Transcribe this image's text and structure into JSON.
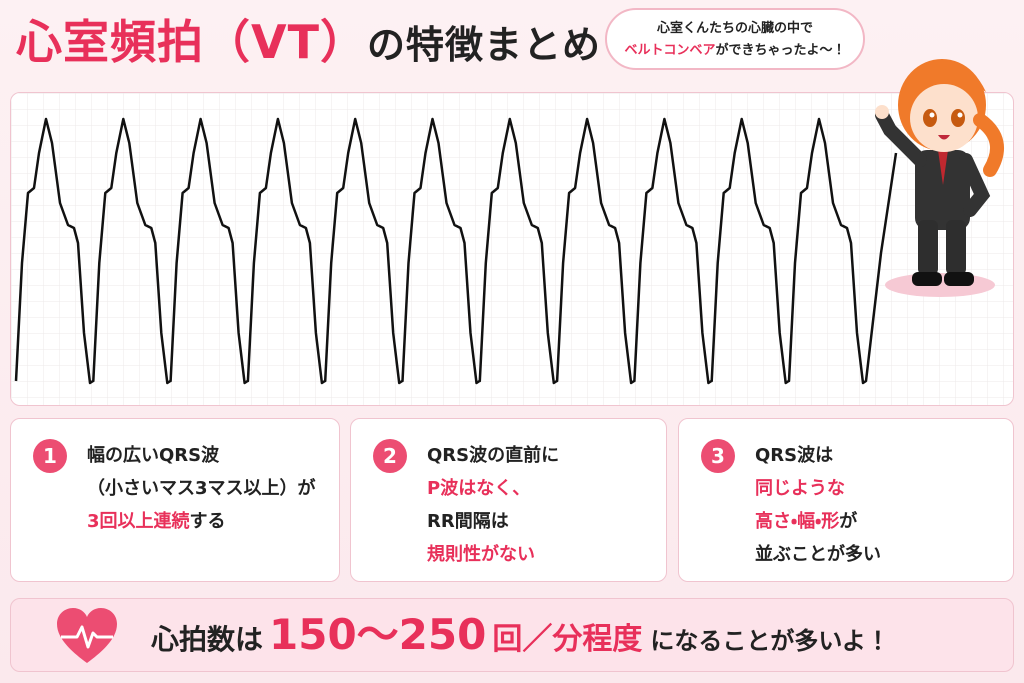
{
  "header": {
    "title": [
      {
        "text": "心室頻拍（VT）",
        "accent": true
      },
      {
        "text": "の特徴まとめ",
        "accent": false
      }
    ]
  },
  "speech_bubble": {
    "lines": [
      [
        {
          "text": "心室くんたちの心臓の中で",
          "accent": false
        }
      ],
      [
        {
          "text": "ベルトコンベア",
          "accent": true
        },
        {
          "text": "ができちゃったよ〜！",
          "accent": false
        }
      ]
    ]
  },
  "cards": [
    {
      "number": "1",
      "lines": [
        [
          {
            "text": "幅の広いQRS波",
            "accent": false
          }
        ],
        [
          {
            "text": "（小さいマス3マス以上）が",
            "accent": false
          }
        ],
        [
          {
            "text": "3回以上連続",
            "accent": true
          },
          {
            "text": "する",
            "accent": false
          }
        ]
      ]
    },
    {
      "number": "2",
      "lines": [
        [
          {
            "text": "QRS波の直前に",
            "accent": false
          }
        ],
        [
          {
            "text": "P波はなく、",
            "accent": true
          }
        ],
        [
          {
            "text": "RR間隔は",
            "accent": false
          }
        ],
        [
          {
            "text": "規則性がない",
            "accent": true
          }
        ]
      ]
    },
    {
      "number": "3",
      "lines": [
        [
          {
            "text": "QRS波は",
            "accent": false
          }
        ],
        [
          {
            "text": "同じような",
            "accent": true
          }
        ],
        [
          {
            "text": "高さ・幅・形",
            "accent": true
          },
          {
            "text": "が",
            "accent": false
          }
        ],
        [
          {
            "text": "並ぶことが多い",
            "accent": false
          }
        ]
      ]
    }
  ],
  "footer": {
    "text": [
      {
        "text": "心拍数は",
        "accent": false
      },
      {
        "text": "150〜250",
        "accent": true
      },
      {
        "text": "回／分程度",
        "accent": true
      },
      {
        "text": "になることが多いよ！",
        "accent": false
      }
    ]
  }
}
